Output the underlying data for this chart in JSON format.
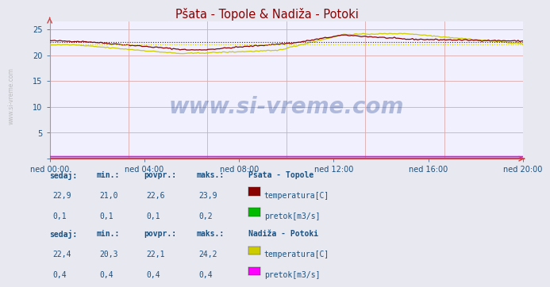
{
  "title": "Pšata - Topole & Nadiža - Potoki",
  "title_color": "#8B0000",
  "bg_color": "#e8e8f0",
  "plot_bg_color": "#f0f0ff",
  "grid_color": "#ddaaaa",
  "xlabel_ticks": [
    "ned 00:00",
    "ned 04:00",
    "ned 08:00",
    "ned 12:00",
    "ned 16:00",
    "ned 20:00"
  ],
  "ytick_labels": [
    "",
    "5",
    "10",
    "15",
    "20",
    "25"
  ],
  "ytick_vals": [
    0,
    5,
    10,
    15,
    20,
    25
  ],
  "ylim": [
    0,
    26.5
  ],
  "xlim": [
    0,
    287
  ],
  "temp1_color": "#8B0000",
  "temp1_avg": 22.6,
  "temp1_min": 21.0,
  "temp1_max": 23.9,
  "temp1_cur": 22.9,
  "flow1_color": "#00bb00",
  "flow1_avg": 0.1,
  "flow1_min": 0.1,
  "flow1_max": 0.2,
  "flow1_cur": 0.1,
  "temp2_color": "#cccc00",
  "temp2_avg": 22.1,
  "temp2_min": 20.3,
  "temp2_max": 24.2,
  "temp2_cur": 22.4,
  "flow2_color": "#ff00ff",
  "flow2_avg": 0.4,
  "flow2_min": 0.4,
  "flow2_max": 0.4,
  "flow2_cur": 0.4,
  "watermark": "www.si-vreme.com",
  "watermark_color": "#1a3a8a",
  "text_color": "#1a5080",
  "label_color": "#1a5080",
  "n_points": 288,
  "axis_color": "#cc4444",
  "spine_color": "#cc8888",
  "sidebar_text": "www.si-vreme.com",
  "sidebar_color": "#aaaaaa",
  "headers": [
    "sedaj:",
    "min.:",
    "povpr.:",
    "maks.:"
  ],
  "section1_title": "Pšata - Topole",
  "section1_vals_temp": [
    "22,9",
    "21,0",
    "22,6",
    "23,9"
  ],
  "section1_vals_flow": [
    "0,1",
    "0,1",
    "0,1",
    "0,2"
  ],
  "section1_label_temp": "temperatura[C]",
  "section1_label_flow": "pretok[m3/s]",
  "section2_title": "Nadiža - Potoki",
  "section2_vals_temp": [
    "22,4",
    "20,3",
    "22,1",
    "24,2"
  ],
  "section2_vals_flow": [
    "0,4",
    "0,4",
    "0,4",
    "0,4"
  ],
  "section2_label_temp": "temperatura[C]",
  "section2_label_flow": "pretok[m3/s]"
}
